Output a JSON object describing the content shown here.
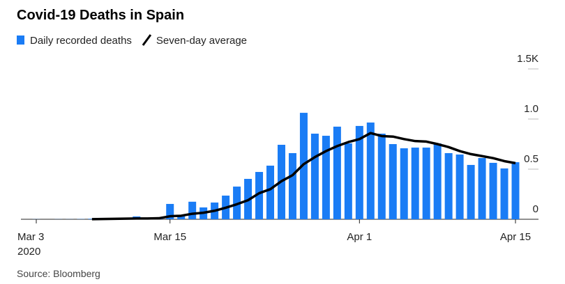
{
  "chart_data": {
    "type": "bar",
    "title": "Covid-19 Deaths in Spain",
    "source": "Source: Bloomberg",
    "year": "2020",
    "categories": [
      "Mar 3",
      null,
      null,
      null,
      null,
      null,
      null,
      null,
      null,
      null,
      null,
      null,
      "Mar 15",
      null,
      null,
      null,
      null,
      null,
      null,
      null,
      null,
      null,
      null,
      null,
      null,
      null,
      null,
      null,
      null,
      "Apr 1",
      null,
      null,
      null,
      null,
      null,
      null,
      null,
      null,
      null,
      null,
      null,
      null,
      null,
      "Apr 15"
    ],
    "series": [
      {
        "name": "Daily recorded deaths",
        "color": "#1a7cf5",
        "type": "bar",
        "values": [
          1,
          0,
          1,
          1,
          2,
          5,
          14,
          5,
          10,
          28,
          14,
          20,
          153,
          35,
          175,
          118,
          167,
          236,
          326,
          403,
          472,
          535,
          743,
          660,
          1062,
          854,
          833,
          924,
          757,
          931,
          965,
          854,
          750,
          708,
          715,
          715,
          757,
          660,
          646,
          542,
          611,
          563,
          507,
          569
        ]
      },
      {
        "name": "Seven-day average",
        "color": "#000000",
        "type": "line",
        "values": [
          null,
          null,
          null,
          null,
          null,
          1,
          3,
          4,
          6,
          8,
          8,
          10,
          30,
          35,
          55,
          65,
          85,
          115,
          150,
          190,
          260,
          300,
          380,
          440,
          550,
          620,
          680,
          730,
          770,
          800,
          860,
          830,
          825,
          800,
          780,
          775,
          750,
          720,
          680,
          650,
          630,
          610,
          580,
          560
        ]
      }
    ],
    "ylim": [
      0,
      1500
    ],
    "yticks": [
      0,
      {
        "value": 500,
        "label": "0.5"
      },
      {
        "value": 1000,
        "label": "1.0"
      },
      {
        "value": 1500,
        "label": "1.5K"
      }
    ]
  }
}
